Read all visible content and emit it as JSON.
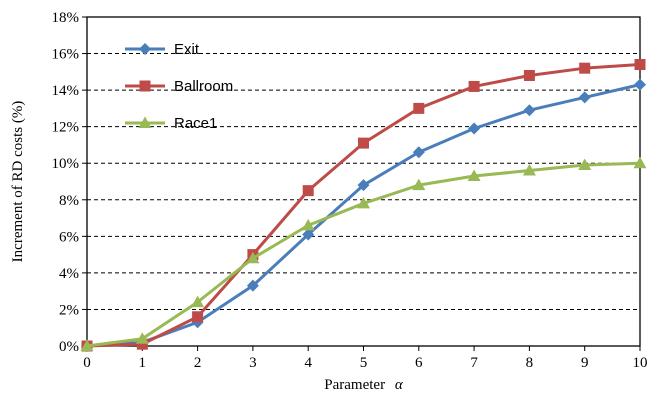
{
  "chart_data": {
    "type": "line",
    "title": "",
    "xlabel": "Parameter",
    "xlabel_symbol": "α",
    "ylabel": "Increment of  RD costs (%)",
    "x": [
      0,
      1,
      2,
      3,
      4,
      5,
      6,
      7,
      8,
      9,
      10
    ],
    "x_tick_labels": [
      "0",
      "1",
      "2",
      "3",
      "4",
      "5",
      "6",
      "7",
      "8",
      "9",
      "10"
    ],
    "y_tick_labels": [
      "0%",
      "2%",
      "4%",
      "6%",
      "8%",
      "10%",
      "12%",
      "14%",
      "16%",
      "18%"
    ],
    "xlim": [
      0,
      10
    ],
    "ylim": [
      0,
      18
    ],
    "y_unit": "%",
    "grid": "horizontal dashed",
    "legend_position": "top-left",
    "series": [
      {
        "name": "Exit",
        "color": "#4a7ebb",
        "marker": "diamond",
        "values": [
          0.0,
          0.2,
          1.3,
          3.3,
          6.1,
          8.8,
          10.6,
          11.9,
          12.9,
          13.6,
          14.3
        ]
      },
      {
        "name": "Ballroom",
        "color": "#be4b48",
        "marker": "square",
        "values": [
          0.0,
          0.1,
          1.6,
          5.0,
          8.5,
          11.1,
          13.0,
          14.2,
          14.8,
          15.2,
          15.4
        ]
      },
      {
        "name": "Race1",
        "color": "#98b954",
        "marker": "triangle",
        "values": [
          0.0,
          0.4,
          2.4,
          4.8,
          6.6,
          7.8,
          8.8,
          9.3,
          9.6,
          9.9,
          10.0
        ]
      }
    ]
  }
}
